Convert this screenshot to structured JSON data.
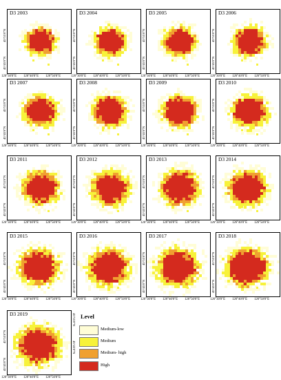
{
  "panels": [
    {
      "title": "D3 2003"
    },
    {
      "title": "D3 2004"
    },
    {
      "title": "D3 2005"
    },
    {
      "title": "D3 2006"
    },
    {
      "title": "D3 2007"
    },
    {
      "title": "D3 2008"
    },
    {
      "title": "D3 2009"
    },
    {
      "title": "D3 2010"
    },
    {
      "title": "D3 2011"
    },
    {
      "title": "D3 2012"
    },
    {
      "title": "D3 2013"
    },
    {
      "title": "D3 2014"
    },
    {
      "title": "D3 2015"
    },
    {
      "title": "D3 2016"
    },
    {
      "title": "D3 2017"
    },
    {
      "title": "D3 2018"
    },
    {
      "title": "D3 2019"
    }
  ],
  "axes": {
    "lon_ticks": [
      "126°30'0\"E",
      "126°40'0\"E",
      "126°50'0\"E"
    ],
    "lat_ticks": [
      "45°55'0\"N",
      "45°45'0\"N"
    ]
  },
  "legend": {
    "title": "Level",
    "items": [
      {
        "label": "Medium-low",
        "color": "#fffdd6"
      },
      {
        "label": "Medium",
        "color": "#f7f23a"
      },
      {
        "label": "Medium- high",
        "color": "#f0a030"
      },
      {
        "label": "High",
        "color": "#d42a1e"
      }
    ]
  }
}
